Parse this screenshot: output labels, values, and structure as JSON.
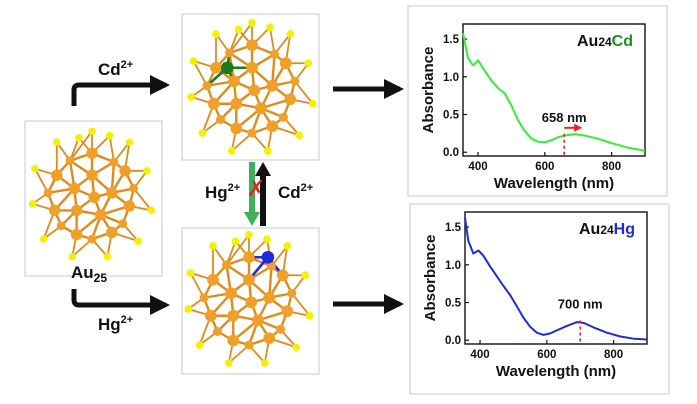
{
  "labels": {
    "cluster_main": "Au",
    "cluster_main_sub": "25",
    "top_ion": "Cd",
    "top_ion_charge": "2+",
    "bottom_ion": "Hg",
    "bottom_ion_charge": "2+",
    "exchange_left_ion": "Hg",
    "exchange_left_charge": "2+",
    "exchange_right_ion": "Cd",
    "exchange_right_charge": "2+",
    "blocked_mark": "✗"
  },
  "colors": {
    "gold_atom": "#f0a028",
    "gold_bond": "#e08a1c",
    "sulfur": "#f2f200",
    "cd_dopant": "#1d7a1d",
    "hg_dopant": "#1f2bd6",
    "green_arrow": "#3db05a",
    "red_cross": "#e8231c",
    "black": "#111111"
  },
  "chart_data": [
    {
      "type": "line",
      "title_prefix": "Au",
      "title_sub": "24",
      "title_dopant": "Cd",
      "title_color": "#1d8f1d",
      "line_color": "#33ee33",
      "xlabel": "Wavelength (nm)",
      "ylabel": "Absorbance",
      "xlim": [
        355,
        900
      ],
      "ylim": [
        -0.05,
        1.7
      ],
      "xticks": [
        400,
        600,
        800
      ],
      "yticks": [
        0.0,
        0.5,
        1.0,
        1.5
      ],
      "ytick_labels": [
        "0.0",
        "0.5",
        "1.0",
        "1.5"
      ],
      "x": [
        355,
        370,
        385,
        400,
        420,
        440,
        460,
        480,
        500,
        520,
        540,
        560,
        580,
        600,
        620,
        640,
        660,
        690,
        720,
        760,
        800,
        850,
        900
      ],
      "y": [
        1.58,
        1.25,
        1.15,
        1.22,
        1.08,
        0.95,
        0.85,
        0.78,
        0.62,
        0.42,
        0.28,
        0.18,
        0.14,
        0.13,
        0.16,
        0.2,
        0.22,
        0.24,
        0.22,
        0.18,
        0.12,
        0.06,
        0.02
      ],
      "peak_marker": 658,
      "peak_label": "658 nm",
      "shift_direction": "right"
    },
    {
      "type": "line",
      "title_prefix": "Au",
      "title_sub": "24",
      "title_dopant": "Hg",
      "title_color": "#1f2bd6",
      "line_color": "#1f2bd6",
      "xlabel": "Wavelength (nm)",
      "ylabel": "Absorbance",
      "xlim": [
        355,
        900
      ],
      "ylim": [
        -0.05,
        1.7
      ],
      "xticks": [
        400,
        600,
        800
      ],
      "yticks": [
        0.0,
        0.5,
        1.0,
        1.5
      ],
      "ytick_labels": [
        "0.0",
        "0.5",
        "1.0",
        "1.5"
      ],
      "x": [
        355,
        365,
        380,
        395,
        410,
        430,
        450,
        470,
        490,
        510,
        530,
        550,
        570,
        590,
        610,
        630,
        660,
        690,
        710,
        740,
        780,
        820,
        860,
        900
      ],
      "y": [
        1.62,
        1.32,
        1.15,
        1.19,
        1.12,
        0.98,
        0.85,
        0.72,
        0.6,
        0.45,
        0.3,
        0.18,
        0.1,
        0.07,
        0.09,
        0.13,
        0.19,
        0.24,
        0.23,
        0.17,
        0.1,
        0.05,
        0.02,
        0.01
      ],
      "peak_marker": 700,
      "peak_label": "700 nm"
    }
  ]
}
